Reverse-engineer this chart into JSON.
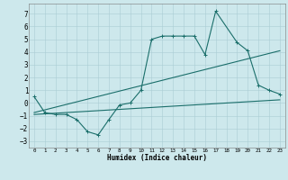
{
  "xlabel": "Humidex (Indice chaleur)",
  "bg_color": "#cde8ec",
  "grid_color": "#aacdd4",
  "line_color": "#1a6e6a",
  "xlim": [
    -0.5,
    23.5
  ],
  "ylim": [
    -3.5,
    7.8
  ],
  "xticks": [
    0,
    1,
    2,
    3,
    4,
    5,
    6,
    7,
    8,
    9,
    10,
    11,
    12,
    13,
    14,
    15,
    16,
    17,
    18,
    19,
    20,
    21,
    22,
    23
  ],
  "yticks": [
    -3,
    -2,
    -1,
    0,
    1,
    2,
    3,
    4,
    5,
    6,
    7
  ],
  "line1_x": [
    0,
    1,
    2,
    3,
    4,
    5,
    6,
    7,
    8,
    9,
    10,
    11,
    12,
    13,
    14,
    15,
    16,
    17,
    19,
    20,
    21,
    22,
    23
  ],
  "line1_y": [
    0.5,
    -0.75,
    -0.9,
    -0.9,
    -1.3,
    -2.25,
    -2.5,
    -1.3,
    -0.15,
    0.0,
    1.0,
    5.0,
    5.25,
    5.25,
    5.25,
    5.25,
    3.8,
    7.2,
    4.75,
    4.1,
    1.4,
    1.0,
    0.7
  ],
  "line2_x": [
    0,
    23
  ],
  "line2_y": [
    -0.75,
    4.1
  ],
  "line3_x": [
    0,
    23
  ],
  "line3_y": [
    -0.9,
    0.25
  ],
  "figsize": [
    3.2,
    2.0
  ],
  "dpi": 100
}
